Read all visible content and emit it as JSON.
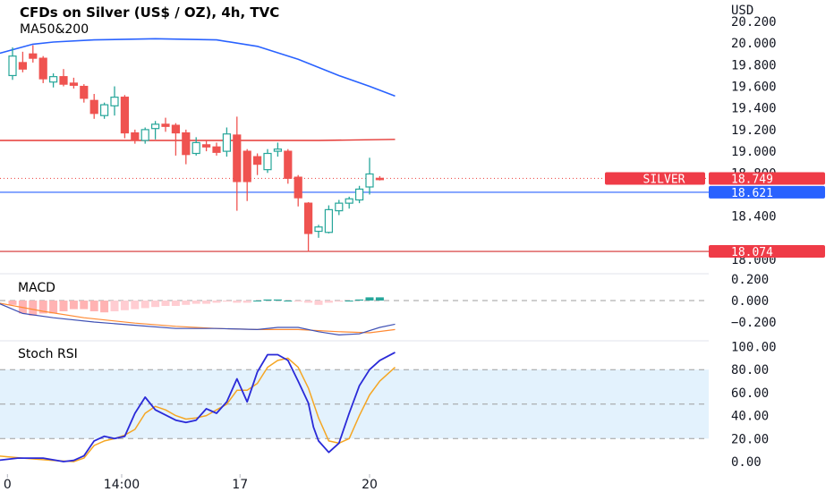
{
  "header": {
    "title": "CFDs on Silver (US$ / OZ), 4h, TVC",
    "indicator": "MA50&200"
  },
  "colors": {
    "up": "#26a69a",
    "down": "#ef5350",
    "ma50": "#2962ff",
    "ma200": "#e53935",
    "support_line": "#2962ff",
    "low_line": "#d32f2f",
    "macd_line": "#3f51b5",
    "signal_line": "#ff8a33",
    "stoch_k": "#2a2ad8",
    "stoch_d": "#f5a623",
    "stoch_band": "#e3f2fd"
  },
  "chart_data": [
    {
      "type": "candlestick",
      "name": "price",
      "currency_label": "USD",
      "y_ticks": [
        "20.200",
        "20.000",
        "19.800",
        "19.600",
        "19.400",
        "19.200",
        "19.000",
        "18.800",
        "18.400",
        "18.000"
      ],
      "ylim": [
        18.0,
        20.3
      ],
      "x_ticks": [
        {
          "label": "0",
          "index": -0.5
        },
        {
          "label": "14:00",
          "index": 10.7
        },
        {
          "label": "17",
          "index": 22.3
        },
        {
          "label": "20",
          "index": 35.0
        }
      ],
      "candles": [
        {
          "o": 19.7,
          "h": 19.96,
          "l": 19.66,
          "c": 19.88
        },
        {
          "o": 19.82,
          "h": 19.92,
          "l": 19.73,
          "c": 19.76
        },
        {
          "o": 19.9,
          "h": 19.98,
          "l": 19.82,
          "c": 19.86
        },
        {
          "o": 19.86,
          "h": 19.88,
          "l": 19.63,
          "c": 19.67
        },
        {
          "o": 19.64,
          "h": 19.72,
          "l": 19.59,
          "c": 19.69
        },
        {
          "o": 19.69,
          "h": 19.76,
          "l": 19.6,
          "c": 19.62
        },
        {
          "o": 19.63,
          "h": 19.68,
          "l": 19.58,
          "c": 19.61
        },
        {
          "o": 19.6,
          "h": 19.62,
          "l": 19.45,
          "c": 19.49
        },
        {
          "o": 19.47,
          "h": 19.53,
          "l": 19.3,
          "c": 19.35
        },
        {
          "o": 19.33,
          "h": 19.45,
          "l": 19.3,
          "c": 19.43
        },
        {
          "o": 19.42,
          "h": 19.6,
          "l": 19.33,
          "c": 19.5
        },
        {
          "o": 19.5,
          "h": 19.52,
          "l": 19.12,
          "c": 19.17
        },
        {
          "o": 19.17,
          "h": 19.2,
          "l": 19.07,
          "c": 19.1
        },
        {
          "o": 19.1,
          "h": 19.22,
          "l": 19.07,
          "c": 19.2
        },
        {
          "o": 19.21,
          "h": 19.28,
          "l": 19.11,
          "c": 19.25
        },
        {
          "o": 19.25,
          "h": 19.31,
          "l": 19.18,
          "c": 19.23
        },
        {
          "o": 19.24,
          "h": 19.26,
          "l": 18.96,
          "c": 19.17
        },
        {
          "o": 19.17,
          "h": 19.2,
          "l": 18.88,
          "c": 18.97
        },
        {
          "o": 18.98,
          "h": 19.13,
          "l": 18.96,
          "c": 19.08
        },
        {
          "o": 19.06,
          "h": 19.1,
          "l": 19.0,
          "c": 19.04
        },
        {
          "o": 19.04,
          "h": 19.08,
          "l": 18.96,
          "c": 18.99
        },
        {
          "o": 19.0,
          "h": 19.22,
          "l": 18.95,
          "c": 19.16
        },
        {
          "o": 19.15,
          "h": 19.32,
          "l": 18.45,
          "c": 18.72
        },
        {
          "o": 19.0,
          "h": 19.02,
          "l": 18.54,
          "c": 18.72
        },
        {
          "o": 18.95,
          "h": 18.98,
          "l": 18.78,
          "c": 18.88
        },
        {
          "o": 18.83,
          "h": 19.02,
          "l": 18.8,
          "c": 18.98
        },
        {
          "o": 19.0,
          "h": 19.08,
          "l": 18.95,
          "c": 19.02
        },
        {
          "o": 19.0,
          "h": 19.02,
          "l": 18.7,
          "c": 18.75
        },
        {
          "o": 18.76,
          "h": 18.78,
          "l": 18.49,
          "c": 18.57
        },
        {
          "o": 18.52,
          "h": 18.53,
          "l": 18.07,
          "c": 18.24
        },
        {
          "o": 18.26,
          "h": 18.32,
          "l": 18.2,
          "c": 18.3
        },
        {
          "o": 18.25,
          "h": 18.5,
          "l": 18.24,
          "c": 18.46
        },
        {
          "o": 18.45,
          "h": 18.55,
          "l": 18.41,
          "c": 18.52
        },
        {
          "o": 18.52,
          "h": 18.58,
          "l": 18.47,
          "c": 18.56
        },
        {
          "o": 18.55,
          "h": 18.68,
          "l": 18.52,
          "c": 18.65
        },
        {
          "o": 18.67,
          "h": 18.94,
          "l": 18.6,
          "c": 18.79
        },
        {
          "o": 18.75,
          "h": 18.77,
          "l": 18.73,
          "c": 18.749
        }
      ],
      "ma50": [
        [
          -1.5,
          19.9
        ],
        [
          2,
          19.99
        ],
        [
          4,
          20.01
        ],
        [
          8,
          20.03
        ],
        [
          14,
          20.04
        ],
        [
          20,
          20.03
        ],
        [
          24,
          19.97
        ],
        [
          28,
          19.85
        ],
        [
          32,
          19.7
        ],
        [
          35,
          19.6
        ],
        [
          37.5,
          19.51
        ]
      ],
      "ma200": [
        [
          -1.5,
          19.1
        ],
        [
          10,
          19.1
        ],
        [
          20,
          19.1
        ],
        [
          30,
          19.1
        ],
        [
          37.5,
          19.11
        ]
      ],
      "levels": [
        {
          "label": "SILVER",
          "value": "18.749",
          "y": 18.749,
          "style": "dotted-red"
        },
        {
          "label": "",
          "value": "18.621",
          "y": 18.621,
          "style": "solid-blue"
        },
        {
          "label": "",
          "value": "18.074",
          "y": 18.074,
          "style": "solid-red"
        }
      ]
    },
    {
      "type": "bar+line",
      "name": "MACD",
      "title": "MACD",
      "y_ticks": [
        "0.200",
        "0.000",
        "−0.200"
      ],
      "ylim": [
        -0.32,
        0.26
      ],
      "histogram": [
        -0.04,
        -0.12,
        -0.14,
        -0.12,
        -0.12,
        -0.1,
        -0.08,
        -0.08,
        -0.1,
        -0.11,
        -0.1,
        -0.09,
        -0.08,
        -0.07,
        -0.06,
        -0.05,
        -0.05,
        -0.04,
        -0.03,
        -0.03,
        -0.02,
        -0.01,
        -0.02,
        -0.02,
        0.0,
        0.01,
        0.01,
        0.0,
        -0.01,
        -0.02,
        -0.04,
        -0.02,
        -0.01,
        0.0,
        0.01,
        0.03,
        0.03
      ],
      "macd": [
        [
          -1.5,
          -0.02
        ],
        [
          1,
          -0.12
        ],
        [
          4,
          -0.16
        ],
        [
          8,
          -0.2
        ],
        [
          12,
          -0.23
        ],
        [
          16,
          -0.26
        ],
        [
          20,
          -0.26
        ],
        [
          24,
          -0.27
        ],
        [
          26,
          -0.25
        ],
        [
          28,
          -0.25
        ],
        [
          30,
          -0.29
        ],
        [
          32,
          -0.32
        ],
        [
          34,
          -0.31
        ],
        [
          36,
          -0.25
        ],
        [
          37.5,
          -0.22
        ]
      ],
      "signal": [
        [
          -1.5,
          -0.02
        ],
        [
          3,
          -0.1
        ],
        [
          7,
          -0.16
        ],
        [
          12,
          -0.21
        ],
        [
          16,
          -0.24
        ],
        [
          20,
          -0.26
        ],
        [
          24,
          -0.27
        ],
        [
          28,
          -0.27
        ],
        [
          32,
          -0.29
        ],
        [
          35,
          -0.3
        ],
        [
          37.5,
          -0.27
        ]
      ]
    },
    {
      "type": "line",
      "name": "Stoch RSI",
      "title": "Stoch RSI",
      "y_ticks": [
        "100.00",
        "80.00",
        "60.00",
        "40.00",
        "20.00",
        "0.00"
      ],
      "ylim": [
        0,
        100
      ],
      "band": [
        20,
        80
      ],
      "k": [
        [
          -1.5,
          1
        ],
        [
          0.5,
          3
        ],
        [
          3,
          3
        ],
        [
          5,
          0
        ],
        [
          6,
          1
        ],
        [
          7,
          5
        ],
        [
          8,
          18
        ],
        [
          9,
          22
        ],
        [
          10,
          20
        ],
        [
          11,
          22
        ],
        [
          12,
          42
        ],
        [
          13,
          56
        ],
        [
          14,
          45
        ],
        [
          16,
          36
        ],
        [
          17,
          34
        ],
        [
          18,
          36
        ],
        [
          19,
          46
        ],
        [
          20,
          42
        ],
        [
          21,
          52
        ],
        [
          22,
          72
        ],
        [
          23,
          52
        ],
        [
          24,
          78
        ],
        [
          25,
          93
        ],
        [
          26,
          93
        ],
        [
          27,
          88
        ],
        [
          28,
          70
        ],
        [
          29,
          51
        ],
        [
          29.5,
          30
        ],
        [
          30,
          18
        ],
        [
          31,
          8
        ],
        [
          32,
          16
        ],
        [
          33,
          42
        ],
        [
          34,
          66
        ],
        [
          35,
          80
        ],
        [
          36,
          88
        ],
        [
          37.5,
          95
        ]
      ],
      "d": [
        [
          -1.5,
          5
        ],
        [
          1,
          3
        ],
        [
          4,
          1
        ],
        [
          6,
          0
        ],
        [
          7,
          3
        ],
        [
          8,
          14
        ],
        [
          9,
          18
        ],
        [
          10,
          20
        ],
        [
          11,
          23
        ],
        [
          12,
          28
        ],
        [
          13,
          42
        ],
        [
          14,
          48
        ],
        [
          15,
          45
        ],
        [
          16,
          40
        ],
        [
          17,
          37
        ],
        [
          18,
          38
        ],
        [
          19,
          40
        ],
        [
          20,
          45
        ],
        [
          21,
          50
        ],
        [
          22,
          62
        ],
        [
          23,
          62
        ],
        [
          24,
          68
        ],
        [
          25,
          82
        ],
        [
          26,
          88
        ],
        [
          27,
          90
        ],
        [
          28,
          82
        ],
        [
          29,
          64
        ],
        [
          30,
          38
        ],
        [
          31,
          18
        ],
        [
          32,
          16
        ],
        [
          33,
          20
        ],
        [
          34,
          40
        ],
        [
          35,
          58
        ],
        [
          36,
          70
        ],
        [
          37.5,
          82
        ]
      ]
    }
  ]
}
